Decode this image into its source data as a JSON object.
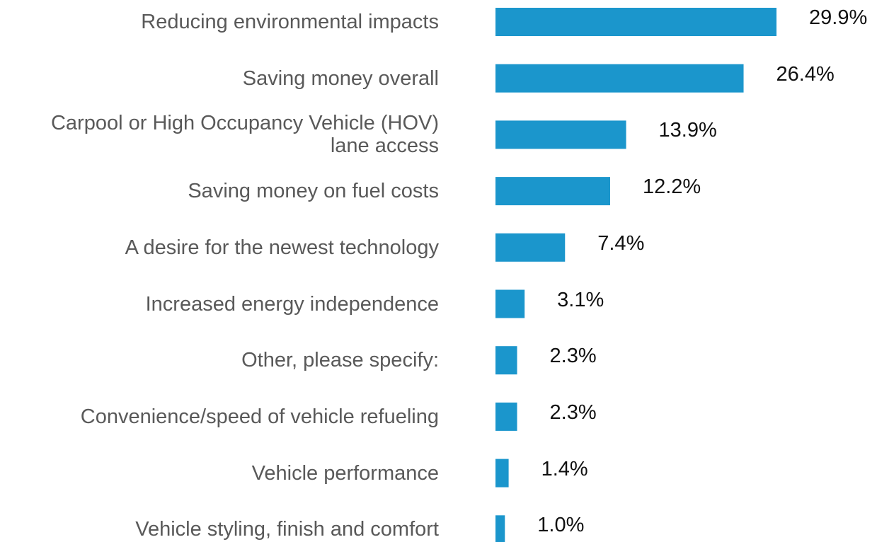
{
  "chart_data": {
    "type": "barh",
    "categories": [
      "Reducing environmental impacts",
      "Saving money overall",
      "Carpool or High Occupancy Vehicle (HOV) lane access",
      "Saving money on fuel costs",
      "A desire for the newest technology",
      "Increased energy independence",
      "Other, please specify:",
      "Convenience/speed of vehicle refueling",
      "Vehicle performance",
      "Vehicle styling, finish and comfort"
    ],
    "values": [
      29.9,
      26.4,
      13.9,
      12.2,
      7.4,
      3.1,
      2.3,
      2.3,
      1.4,
      1.0
    ],
    "value_labels": [
      "29.9%",
      "26.4%",
      "13.9%",
      "12.2%",
      "7.4%",
      "3.1%",
      "2.3%",
      "2.3%",
      "1.4%",
      "1.0%"
    ],
    "color": "#1b96cc"
  }
}
